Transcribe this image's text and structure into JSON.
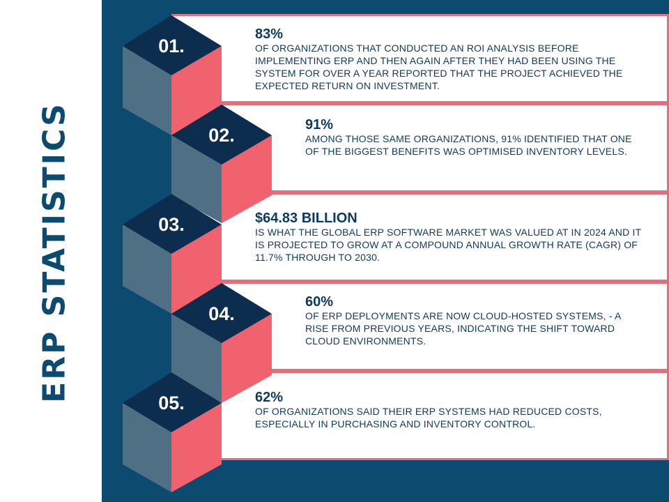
{
  "title": "ERP STATISTICS",
  "colors": {
    "navy": "#0c4a70",
    "dark_navy": "#0d2d4e",
    "slate": "#4f6f85",
    "coral": "#f0626e",
    "card_border": "#e2707c"
  },
  "stats": [
    {
      "number": "01.",
      "value": "83%",
      "text": "OF ORGANIZATIONS THAT CONDUCTED AN ROI ANALYSIS BEFORE IMPLEMENTING ERP AND THEN AGAIN AFTER THEY HAD BEEN USING THE SYSTEM FOR OVER A YEAR REPORTED THAT THE PROJECT ACHIEVED THE EXPECTED RETURN ON INVESTMENT."
    },
    {
      "number": "02.",
      "value": "91%",
      "text": "AMONG THOSE SAME ORGANIZATIONS, 91% IDENTIFIED THAT ONE OF THE BIGGEST BENEFITS WAS OPTIMISED INVENTORY LEVELS."
    },
    {
      "number": "03.",
      "value": "$64.83 BILLION",
      "text": "IS WHAT THE GLOBAL ERP SOFTWARE MARKET WAS VALUED AT IN 2024 AND IT IS PROJECTED TO GROW AT A COMPOUND ANNUAL GROWTH RATE (CAGR) OF 11.7% THROUGH TO 2030."
    },
    {
      "number": "04.",
      "value": "60%",
      "text": "OF ERP DEPLOYMENTS ARE NOW CLOUD-HOSTED SYSTEMS, - A RISE FROM PREVIOUS YEARS, INDICATING THE SHIFT TOWARD CLOUD ENVIRONMENTS."
    },
    {
      "number": "05.",
      "value": "62%",
      "text": "OF ORGANIZATIONS SAID THEIR ERP SYSTEMS HAD REDUCED COSTS, ESPECIALLY IN PURCHASING AND INVENTORY CONTROL."
    }
  ]
}
